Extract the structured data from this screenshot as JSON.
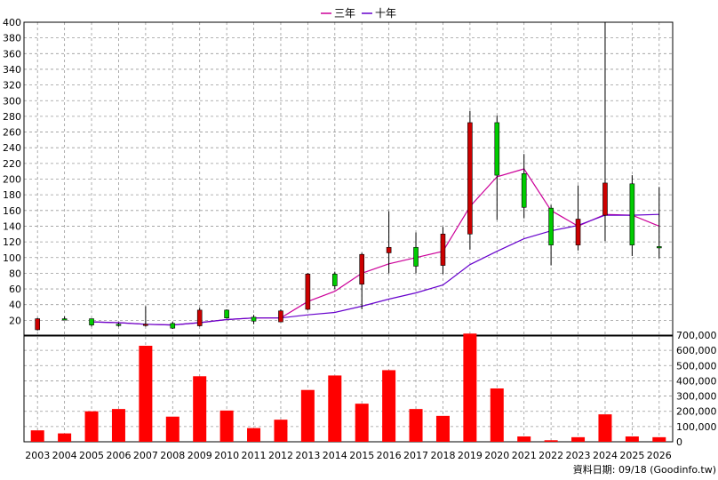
{
  "legend": {
    "three_year": {
      "label": "三年",
      "color": "#cc0099"
    },
    "ten_year": {
      "label": "十年",
      "color": "#6600cc"
    }
  },
  "source_note": "資料日期: 09/18 (Goodinfo.tw)",
  "chart_data": [
    {
      "type": "candlestick",
      "xlabel": "",
      "ylabel": "",
      "ylim": [
        0,
        400
      ],
      "yticks": [
        20,
        40,
        60,
        80,
        100,
        120,
        140,
        160,
        180,
        200,
        220,
        240,
        260,
        280,
        300,
        320,
        340,
        360,
        380,
        400
      ],
      "grid": true,
      "legend_position": "top-center",
      "up_color": "#00cc00",
      "down_color": "#cc0000",
      "categories": [
        "2003",
        "2004",
        "2005",
        "2006",
        "2007",
        "2008",
        "2009",
        "2010",
        "2011",
        "2012",
        "2013",
        "2014",
        "2015",
        "2016",
        "2017",
        "2018",
        "2019",
        "2020",
        "2021",
        "2022",
        "2023",
        "2024",
        "2025",
        "2026"
      ],
      "ohlc": [
        {
          "open": 22,
          "high": 23,
          "low": 7,
          "close": 8
        },
        {
          "open": 22,
          "high": 25,
          "low": 20,
          "close": 22
        },
        {
          "open": 14,
          "high": 22,
          "low": 12,
          "close": 22
        },
        {
          "open": 15,
          "high": 17,
          "low": 12,
          "close": 15
        },
        {
          "open": 15,
          "high": 38,
          "low": 12,
          "close": 14
        },
        {
          "open": 10,
          "high": 18,
          "low": 9,
          "close": 16
        },
        {
          "open": 33,
          "high": 36,
          "low": 12,
          "close": 13
        },
        {
          "open": 23,
          "high": 34,
          "low": 22,
          "close": 33
        },
        {
          "open": 19,
          "high": 27,
          "low": 15,
          "close": 24
        },
        {
          "open": 32,
          "high": 34,
          "low": 18,
          "close": 18
        },
        {
          "open": 79,
          "high": 80,
          "low": 33,
          "close": 34
        },
        {
          "open": 64,
          "high": 82,
          "low": 60,
          "close": 79
        },
        {
          "open": 104,
          "high": 106,
          "low": 34,
          "close": 66
        },
        {
          "open": 113,
          "high": 159,
          "low": 80,
          "close": 106
        },
        {
          "open": 89,
          "high": 132,
          "low": 80,
          "close": 113
        },
        {
          "open": 130,
          "high": 139,
          "low": 79,
          "close": 90
        },
        {
          "open": 272,
          "high": 287,
          "low": 110,
          "close": 130
        },
        {
          "open": 205,
          "high": 281,
          "low": 148,
          "close": 272
        },
        {
          "open": 164,
          "high": 232,
          "low": 150,
          "close": 207
        },
        {
          "open": 116,
          "high": 167,
          "low": 90,
          "close": 163
        },
        {
          "open": 149,
          "high": 192,
          "low": 109,
          "close": 116
        },
        {
          "open": 195,
          "high": 400,
          "low": 121,
          "close": 154
        },
        {
          "open": 116,
          "high": 205,
          "low": 102,
          "close": 194
        },
        {
          "open": 114,
          "high": 190,
          "low": 99,
          "close": 114
        }
      ],
      "lines": [
        {
          "name": "三年",
          "color": "#cc0099",
          "start_index": 2,
          "values": [
            18,
            17,
            15,
            14,
            17,
            21,
            23,
            23,
            44,
            57,
            80,
            92,
            100,
            108,
            165,
            203,
            213,
            160,
            140,
            155,
            154,
            140
          ]
        },
        {
          "name": "十年",
          "color": "#6600cc",
          "start_index": 2,
          "values": [
            18,
            17,
            15,
            14,
            17,
            21,
            23,
            23,
            27,
            30,
            38,
            47,
            55,
            65,
            91,
            108,
            124,
            134,
            141,
            154,
            154,
            155
          ]
        }
      ]
    },
    {
      "type": "bar",
      "ylabel": "",
      "ylim": [
        0,
        700000
      ],
      "yticks": [
        0,
        100000,
        200000,
        300000,
        400000,
        500000,
        600000,
        700000
      ],
      "ytick_labels": [
        "0",
        "100,000",
        "200,000",
        "300,000",
        "400,000",
        "500,000",
        "600,000",
        "700,000"
      ],
      "bar_color": "#ff0000",
      "categories": [
        "2003",
        "2004",
        "2005",
        "2006",
        "2007",
        "2008",
        "2009",
        "2010",
        "2011",
        "2012",
        "2013",
        "2014",
        "2015",
        "2016",
        "2017",
        "2018",
        "2019",
        "2020",
        "2021",
        "2022",
        "2023",
        "2024",
        "2025",
        "2026"
      ],
      "values": [
        75000,
        55000,
        200000,
        215000,
        630000,
        165000,
        430000,
        205000,
        90000,
        145000,
        340000,
        435000,
        250000,
        470000,
        215000,
        170000,
        710000,
        350000,
        35000,
        10000,
        30000,
        180000,
        35000,
        30000
      ]
    }
  ]
}
